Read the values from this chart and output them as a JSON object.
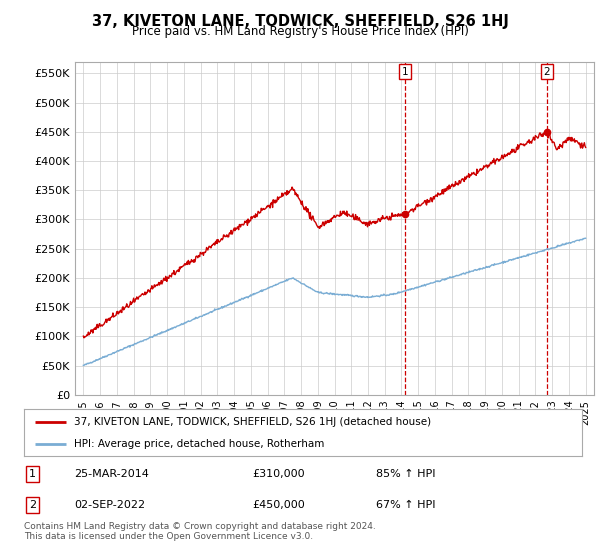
{
  "title": "37, KIVETON LANE, TODWICK, SHEFFIELD, S26 1HJ",
  "subtitle": "Price paid vs. HM Land Registry's House Price Index (HPI)",
  "legend_line1": "37, KIVETON LANE, TODWICK, SHEFFIELD, S26 1HJ (detached house)",
  "legend_line2": "HPI: Average price, detached house, Rotherham",
  "sale1_date": "25-MAR-2014",
  "sale1_price": "£310,000",
  "sale1_hpi": "85% ↑ HPI",
  "sale2_date": "02-SEP-2022",
  "sale2_price": "£450,000",
  "sale2_hpi": "67% ↑ HPI",
  "footer": "Contains HM Land Registry data © Crown copyright and database right 2024.\nThis data is licensed under the Open Government Licence v3.0.",
  "red_color": "#cc0000",
  "blue_color": "#7aadd4",
  "background_color": "#ffffff",
  "grid_color": "#cccccc",
  "sale1_x": 2014.23,
  "sale1_y": 310000,
  "sale2_x": 2022.67,
  "sale2_y": 450000,
  "ylim": [
    0,
    570000
  ],
  "xlim_start": 1994.5,
  "xlim_end": 2025.5
}
